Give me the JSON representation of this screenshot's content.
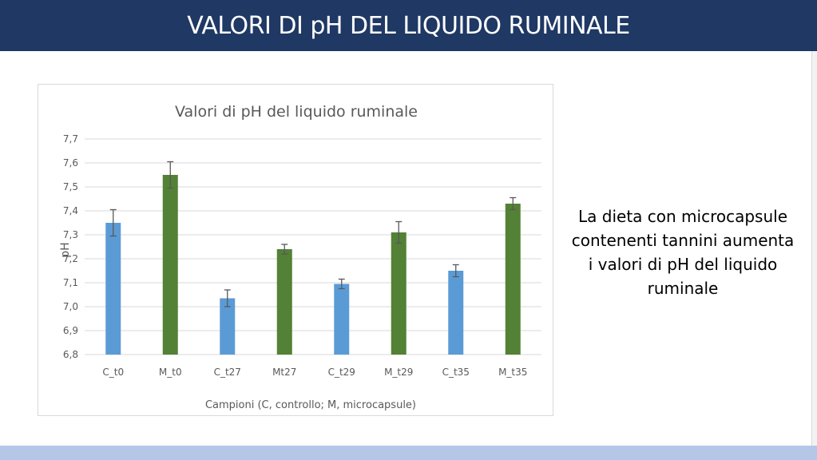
{
  "slide": {
    "title": "VALORI DI pH DEL LIQUIDO RUMINALE",
    "side_text": "La dieta con microcapsule contenenti tannini aumenta i valori di pH del liquido ruminale"
  },
  "colors": {
    "header": "#1f3864",
    "footer": "#b4c7e7",
    "control": "#5b9bd5",
    "microcapsule": "#538135",
    "error_bar": "#595959"
  },
  "chart_data": {
    "type": "bar",
    "title": "Valori di pH del liquido ruminale",
    "xlabel": "Campioni (C, controllo; M, microcapsule)",
    "ylabel": "pH",
    "ylim": [
      6.8,
      7.7
    ],
    "yticks": [
      "6,8",
      "6,9",
      "7,0",
      "7,1",
      "7,2",
      "7,3",
      "7,4",
      "7,5",
      "7,6",
      "7,7"
    ],
    "grid": true,
    "categories": [
      "C_t0",
      "M_t0",
      "C_t27",
      "Mt27",
      "C_t29",
      "M_t29",
      "C_t35",
      "M_t35"
    ],
    "values": [
      7.35,
      7.55,
      7.035,
      7.24,
      7.095,
      7.31,
      7.15,
      7.43
    ],
    "errors": [
      0.055,
      0.055,
      0.035,
      0.02,
      0.02,
      0.045,
      0.025,
      0.025
    ],
    "bar_groups": [
      "control",
      "microcapsule",
      "control",
      "microcapsule",
      "control",
      "microcapsule",
      "control",
      "microcapsule"
    ]
  }
}
